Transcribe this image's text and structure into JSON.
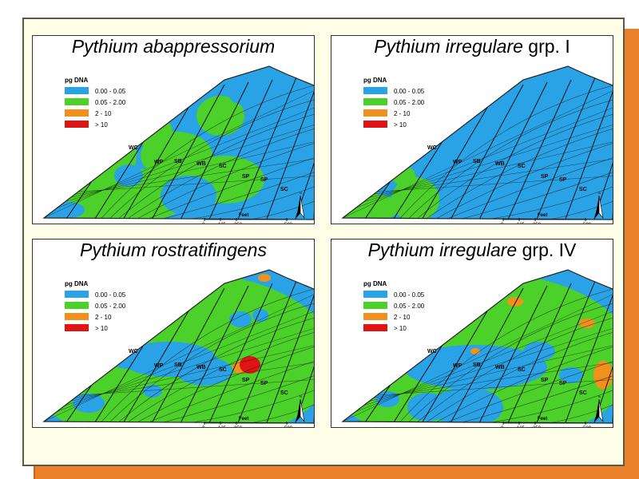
{
  "panels": [
    {
      "species": "Pythium abappressorium",
      "suffix": ""
    },
    {
      "species": "Pythium irregulare",
      "suffix": " grp. I"
    },
    {
      "species": "Pythium rostratifingens",
      "suffix": ""
    },
    {
      "species": "Pythium irregulare",
      "suffix": " grp. IV"
    }
  ],
  "legend": {
    "title": "pg DNA",
    "items": [
      {
        "label": "0.00 - 0.05",
        "color": "#2aa3e6"
      },
      {
        "label": "0.05 - 2.00",
        "color": "#4cd02a"
      },
      {
        "label": "2 - 10",
        "color": "#f0901e"
      },
      {
        "label": "> 10",
        "color": "#e01414"
      }
    ]
  },
  "zone_labels": [
    "WC",
    "WP",
    "SB",
    "WB",
    "SC",
    "SP",
    "SP",
    "SC"
  ],
  "scale_bar": {
    "title": "Feet",
    "ticks": [
      "0",
      "125",
      "250",
      "500"
    ]
  },
  "north_label": "N",
  "colors": {
    "base_blue": "#2aa3e6",
    "green": "#4cd02a",
    "orange": "#f0901e",
    "red": "#e01414",
    "shadow": "#e8812a",
    "card": "#fdfde8"
  }
}
